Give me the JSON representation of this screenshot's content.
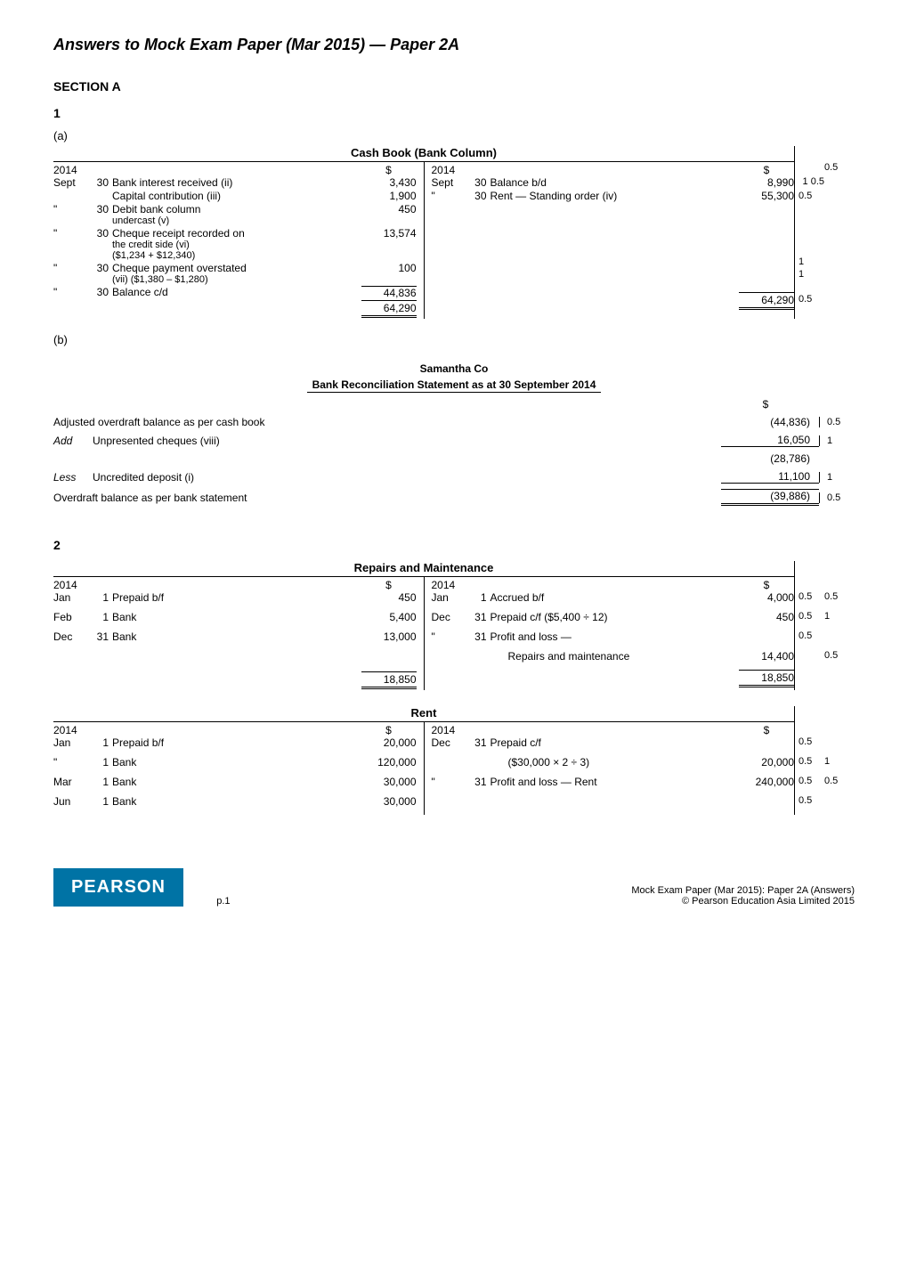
{
  "page_title": "Answers to Mock Exam Paper (Mar 2015) — Paper 2A",
  "sectionA": "SECTION A",
  "q1": "1",
  "q1a": "(a)",
  "q1b": "(b)",
  "cashbook": {
    "title": "Cash Book (Bank Column)",
    "dollar": "$",
    "left": {
      "year": "2014",
      "rows": [
        {
          "mon": "Sept",
          "day": "30",
          "desc": "Bank interest received (ii)",
          "amt": "3,430"
        },
        {
          "mon": "",
          "day": "",
          "desc": "Capital contribution (iii)",
          "amt": "1,900"
        },
        {
          "mon": "\"",
          "day": "30",
          "desc": "Debit bank column",
          "sub": "undercast (v)",
          "amt": "450"
        },
        {
          "mon": "\"",
          "day": "30",
          "desc": "Cheque receipt recorded on",
          "sub": "the credit side (vi)",
          "sub2": "($1,234 + $12,340)",
          "amt": "13,574"
        },
        {
          "mon": "\"",
          "day": "30",
          "desc": "Cheque payment overstated",
          "sub": "(vii) ($1,380 – $1,280)",
          "amt": "100"
        },
        {
          "mon": "\"",
          "day": "30",
          "desc": "Balance c/d",
          "amt": "44,836"
        }
      ],
      "total": "64,290"
    },
    "right": {
      "year": "2014",
      "rows": [
        {
          "mon": "Sept",
          "day": "30",
          "desc": "Balance b/d",
          "amt": "8,990"
        },
        {
          "mon": "\"",
          "day": "30",
          "desc": "Rent — Standing order (iv)",
          "amt": "55,300"
        }
      ],
      "total": "64,290"
    },
    "marks": [
      "0.5",
      "1   0.5",
      "0.5",
      "",
      "1",
      "1",
      "0.5"
    ]
  },
  "samantha": {
    "company": "Samantha Co",
    "title": "Bank Reconciliation Statement as at 30 September 2014",
    "dollar": "$",
    "rows": [
      {
        "lab": "",
        "text": "Adjusted overdraft balance as per cash book",
        "amt": "(44,836)",
        "m": "0.5"
      },
      {
        "lab": "Add",
        "text": "Unpresented cheques (viii)",
        "amt": "16,050",
        "m": "1",
        "ul": "top"
      },
      {
        "lab": "",
        "text": "",
        "amt": "(28,786)",
        "m": ""
      },
      {
        "lab": "Less",
        "text": "Uncredited deposit (i)",
        "amt": "11,100",
        "m": "1",
        "ul": "top"
      },
      {
        "lab": "",
        "text": "Overdraft balance as per bank statement",
        "amt": "(39,886)",
        "m": "0.5",
        "ul": "dbl"
      }
    ]
  },
  "q2": "2",
  "repairs": {
    "title": "Repairs and Maintenance",
    "dollar": "$",
    "left": {
      "year": "2014",
      "rows": [
        {
          "mon": "Jan",
          "day": "1",
          "desc": "Prepaid b/f",
          "amt": "450"
        },
        {
          "mon": "Feb",
          "day": "1",
          "desc": "Bank",
          "amt": "5,400"
        },
        {
          "mon": "Dec",
          "day": "31",
          "desc": "Bank",
          "amt": "13,000"
        }
      ],
      "total": "18,850"
    },
    "right": {
      "year": "2014",
      "rows": [
        {
          "mon": "Jan",
          "day": "1",
          "desc": "Accrued b/f",
          "amt": "4,000",
          "m1": "0.5",
          "m2": "0.5"
        },
        {
          "mon": "Dec",
          "day": "31",
          "desc": "Prepaid c/f ($5,400 ÷ 12)",
          "amt": "450",
          "m1": "0.5",
          "m2": "1"
        },
        {
          "mon": "\"",
          "day": "31",
          "desc": "Profit and loss —",
          "amt": "",
          "m1": "0.5",
          "m2": ""
        },
        {
          "mon": "",
          "day": "",
          "desc": "      Repairs and maintenance",
          "amt": "14,400",
          "m1": "",
          "m2": "0.5"
        }
      ],
      "total": "18,850"
    }
  },
  "rent": {
    "title": "Rent",
    "dollar": "$",
    "left": {
      "year": "2014",
      "rows": [
        {
          "mon": "Jan",
          "day": "1",
          "desc": "Prepaid b/f",
          "amt": "20,000"
        },
        {
          "mon": "\"",
          "day": "1",
          "desc": "Bank",
          "amt": "120,000"
        },
        {
          "mon": "Mar",
          "day": "1",
          "desc": "Bank",
          "amt": "30,000"
        },
        {
          "mon": "Jun",
          "day": "1",
          "desc": "Bank",
          "amt": "30,000"
        }
      ]
    },
    "right": {
      "year": "2014",
      "rows": [
        {
          "mon": "Dec",
          "day": "31",
          "desc": "Prepaid c/f",
          "amt": "",
          "m1": "0.5",
          "m2": ""
        },
        {
          "mon": "",
          "day": "",
          "desc": "      ($30,000 × 2 ÷ 3)",
          "amt": "20,000",
          "m1": "0.5",
          "m2": "1"
        },
        {
          "mon": "\"",
          "day": "31",
          "desc": "Profit and loss — Rent",
          "amt": "240,000",
          "m1": "0.5",
          "m2": "0.5"
        },
        {
          "mon": "",
          "day": "",
          "desc": "",
          "amt": "",
          "m1": "0.5",
          "m2": ""
        }
      ]
    }
  },
  "footer": {
    "brand": "PEARSON",
    "pagenum": "p.1",
    "line1": "Mock Exam Paper (Mar 2015): Paper 2A (Answers)",
    "line2": "© Pearson Education Asia Limited 2015"
  }
}
